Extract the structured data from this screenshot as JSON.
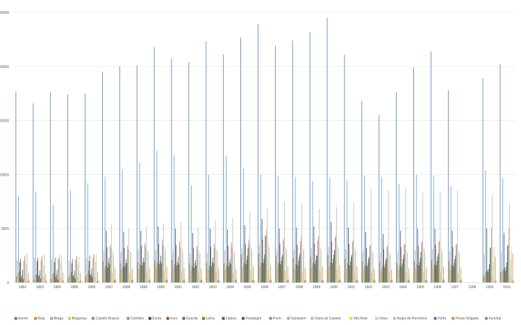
{
  "chart_data": {
    "type": "bar",
    "title": "",
    "xlabel": "",
    "ylabel": "",
    "ylim": [
      0,
      25000
    ],
    "yticks": [
      0,
      5000,
      10000,
      15000,
      20000,
      25000
    ],
    "grid": true,
    "legend_position": "bottom",
    "categories": [
      "1882",
      "1883",
      "1884",
      "1885",
      "1886",
      "1887",
      "1888",
      "1889",
      "1890",
      "1891",
      "1892",
      "1893",
      "1894",
      "1895",
      "1896",
      "1897",
      "1898",
      "1899",
      "1900",
      "1901",
      "1902",
      "1903",
      "1904",
      "1905",
      "1906",
      "1907",
      "1908",
      "1909",
      "1910"
    ],
    "series": [
      {
        "name": "Aveiro",
        "color": "#4e7ab5",
        "values": [
          17700,
          16600,
          17600,
          17400,
          17500,
          19500,
          20000,
          20100,
          21800,
          20700,
          20400,
          22300,
          21100,
          22700,
          23900,
          21900,
          22400,
          23200,
          24500,
          21100,
          16800,
          15500,
          17600,
          19900,
          21400,
          17800,
          null,
          18900,
          20200
        ]
      },
      {
        "name": "Beja",
        "color": "#de7c2f",
        "values": [
          600,
          300,
          400,
          500,
          600,
          2000,
          1800,
          1900,
          2000,
          2100,
          1800,
          1900,
          1800,
          2600,
          2700,
          2500,
          2300,
          2400,
          2600,
          2200,
          2000,
          1900,
          1800,
          2000,
          2100,
          2000,
          null,
          600,
          1000
        ]
      },
      {
        "name": "Braga",
        "color": "#a5a5a5",
        "values": [
          2100,
          2300,
          2200,
          2000,
          2300,
          3000,
          2800,
          3100,
          3000,
          2900,
          2700,
          2800,
          3000,
          3200,
          3500,
          3000,
          3100,
          3200,
          3300,
          3100,
          2900,
          2800,
          2800,
          3000,
          3100,
          2900,
          null,
          2600,
          2800
        ]
      },
      {
        "name": "Bragança",
        "color": "#f2c02f",
        "values": [
          800,
          700,
          800,
          700,
          800,
          1300,
          1200,
          1300,
          1400,
          1300,
          1200,
          1300,
          1200,
          1400,
          1500,
          1400,
          1300,
          1400,
          1500,
          1300,
          1200,
          1100,
          1200,
          1300,
          1300,
          1200,
          null,
          800,
          900
        ]
      },
      {
        "name": "Castelo Branco",
        "color": "#5b9bd5",
        "values": [
          8000,
          8400,
          7200,
          8500,
          9200,
          9800,
          10500,
          11100,
          12200,
          11800,
          9000,
          10000,
          11700,
          10600,
          10000,
          9900,
          9800,
          9400,
          9700,
          9500,
          9900,
          9800,
          9100,
          10000,
          9900,
          8900,
          null,
          10400,
          9700
        ]
      },
      {
        "name": "Coimbra",
        "color": "#70ad47",
        "values": [
          1000,
          800,
          900,
          1000,
          1100,
          1600,
          1500,
          1700,
          1800,
          1700,
          1500,
          1600,
          1600,
          1800,
          1900,
          1800,
          1700,
          1800,
          1900,
          1800,
          1600,
          1500,
          1600,
          1700,
          1700,
          1600,
          null,
          1000,
          1200
        ]
      },
      {
        "name": "Évora",
        "color": "#264478",
        "values": [
          1900,
          2000,
          1900,
          1800,
          2000,
          4800,
          4700,
          4800,
          5200,
          5000,
          4600,
          5000,
          4900,
          5300,
          5900,
          5000,
          5100,
          5200,
          5600,
          5100,
          4700,
          4500,
          4800,
          5000,
          5000,
          4800,
          null,
          5000,
          4600
        ]
      },
      {
        "name": "Faro",
        "color": "#9e480e",
        "values": [
          2200,
          2300,
          2300,
          2200,
          2500,
          3300,
          3200,
          3400,
          3600,
          3500,
          3200,
          3300,
          3400,
          3600,
          4000,
          3600,
          3500,
          3600,
          3800,
          3600,
          3200,
          3100,
          3300,
          3400,
          3500,
          3300,
          null,
          1200,
          1400
        ]
      },
      {
        "name": "Guarda",
        "color": "#636363",
        "values": [
          500,
          600,
          500,
          600,
          700,
          1400,
          1500,
          1600,
          1700,
          1600,
          1400,
          1500,
          1500,
          1700,
          1800,
          1700,
          1600,
          1700,
          1800,
          1600,
          1500,
          1400,
          1500,
          1600,
          1600,
          1500,
          null,
          1000,
          1100
        ]
      },
      {
        "name": "Leiria",
        "color": "#997300",
        "values": [
          700,
          700,
          800,
          700,
          800,
          1900,
          1800,
          1900,
          2000,
          1900,
          1800,
          1900,
          1900,
          2100,
          2200,
          2000,
          2000,
          2100,
          2200,
          2000,
          1800,
          1700,
          1800,
          1900,
          2000,
          1800,
          null,
          1300,
          1500
        ]
      },
      {
        "name": "Lisboa",
        "color": "#255e91",
        "values": [
          1200,
          1100,
          1200,
          1100,
          1300,
          2300,
          2200,
          2300,
          2500,
          2400,
          2100,
          2300,
          2200,
          2500,
          2600,
          2400,
          2400,
          2500,
          2600,
          2400,
          2200,
          2100,
          2200,
          2300,
          2400,
          2200,
          null,
          1700,
          1900
        ]
      },
      {
        "name": "Portalegre",
        "color": "#43682b",
        "values": [
          300,
          400,
          300,
          400,
          500,
          1700,
          1800,
          1900,
          1800,
          1700,
          1600,
          1800,
          1700,
          3200,
          4300,
          2600,
          2700,
          2500,
          3000,
          2600,
          2400,
          2300,
          2600,
          2800,
          2700,
          2500,
          null,
          3200,
          3400
        ]
      },
      {
        "name": "Porto",
        "color": "#698ed0",
        "values": [
          2000,
          2100,
          2200,
          2100,
          2300,
          3500,
          3400,
          3600,
          4000,
          3800,
          3400,
          3600,
          3700,
          4000,
          4400,
          3900,
          3800,
          3900,
          4200,
          3800,
          3400,
          3300,
          3500,
          3700,
          3800,
          3500,
          null,
          3300,
          3500
        ]
      },
      {
        "name": "Santarém",
        "color": "#f1975a",
        "values": [
          2500,
          2400,
          2300,
          2500,
          2700,
          3200,
          3100,
          3300,
          3500,
          3300,
          3100,
          3200,
          3300,
          3600,
          4900,
          4100,
          4200,
          4300,
          4400,
          4000,
          3500,
          3400,
          3600,
          3800,
          3900,
          3600,
          null,
          5100,
          5000
        ]
      },
      {
        "name": "Viana do Castelo",
        "color": "#b7b7b7",
        "values": [
          2400,
          2500,
          2600,
          2400,
          2600,
          5400,
          5000,
          5200,
          5500,
          5600,
          5100,
          5800,
          6000,
          6500,
          6800,
          7500,
          7300,
          6800,
          7000,
          7400,
          8600,
          8600,
          8800,
          8300,
          8400,
          8500,
          null,
          8100,
          7400
        ]
      },
      {
        "name": "Vila Real",
        "color": "#ffcd33",
        "values": [
          400,
          500,
          400,
          500,
          500,
          900,
          900,
          1000,
          1100,
          1000,
          900,
          1000,
          900,
          1100,
          1200,
          1100,
          1000,
          1100,
          1200,
          1000,
          900,
          900,
          900,
          1000,
          1000,
          900,
          null,
          400,
          500
        ]
      },
      {
        "name": "Viseu",
        "color": "#c9c9c9",
        "values": [
          1700,
          1600,
          1800,
          1700,
          1900,
          3000,
          2900,
          3100,
          3300,
          3200,
          2900,
          3100,
          3000,
          3300,
          3600,
          3300,
          3200,
          3300,
          3500,
          3200,
          2900,
          2800,
          3000,
          3200,
          3300,
          3000,
          null,
          1900,
          2100
        ]
      },
      {
        "name": "Angra do Heroísmo",
        "color": "#a9d18e",
        "values": [
          2700,
          2600,
          2500,
          2400,
          2600,
          2600,
          2800,
          2900,
          3000,
          2800,
          2600,
          2900,
          2800,
          3100,
          3300,
          3000,
          2900,
          3000,
          3200,
          2900,
          2700,
          2600,
          2700,
          2900,
          2900,
          2700,
          null,
          3300,
          3100
        ]
      },
      {
        "name": "Horta",
        "color": "#4472c4",
        "values": [
          100,
          100,
          100,
          100,
          100,
          200,
          200,
          200,
          200,
          200,
          200,
          200,
          200,
          200,
          200,
          200,
          200,
          200,
          200,
          200,
          200,
          200,
          200,
          200,
          200,
          200,
          null,
          100,
          100
        ]
      },
      {
        "name": "Ponta Delgada",
        "color": "#ed7d31",
        "values": [
          900,
          800,
          900,
          900,
          1000,
          1400,
          1300,
          1400,
          1500,
          1400,
          1300,
          1400,
          1300,
          1500,
          1600,
          1500,
          1400,
          1500,
          1600,
          1500,
          1300,
          1200,
          1300,
          1400,
          1500,
          1400,
          null,
          2400,
          2700
        ]
      },
      {
        "name": "Funchal",
        "color": "#8c8c8c",
        "values": [
          200,
          200,
          200,
          200,
          200,
          300,
          300,
          300,
          300,
          300,
          300,
          300,
          300,
          300,
          300,
          300,
          300,
          300,
          300,
          300,
          300,
          300,
          300,
          300,
          300,
          300,
          null,
          200,
          200
        ]
      }
    ]
  }
}
